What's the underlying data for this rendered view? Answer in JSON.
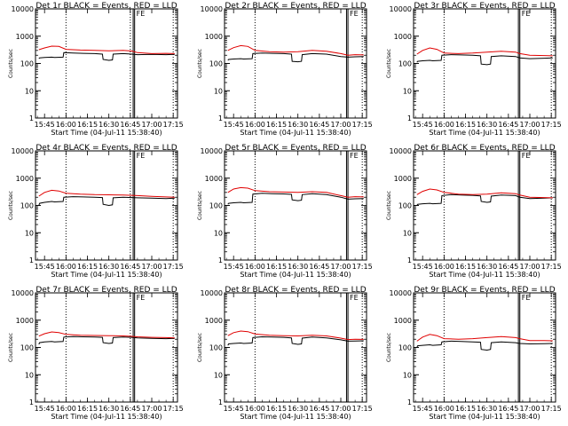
{
  "figure": {
    "time_ticks": [
      "15:45",
      "16:00",
      "16:15",
      "16:30",
      "16:45",
      "17:00",
      "17:15"
    ],
    "time_tick_minutes": [
      945,
      960,
      975,
      990,
      1005,
      1020,
      1035
    ],
    "y_tick_labels": [
      "1",
      "10",
      "100",
      "1000",
      "10000"
    ],
    "y_tick_values": [
      1,
      10,
      100,
      1000,
      10000
    ],
    "colors": {
      "events": "#000000",
      "lld": "#e00000",
      "axes": "#000000",
      "background": "#ffffff"
    }
  },
  "chart_data": [
    {
      "type": "line",
      "title": "Det 1r BLACK = Events, RED = LLD",
      "xlabel": "Start Time (04-Jul-11 15:38:40)",
      "ylabel": "Counts/sec",
      "yscale": "log",
      "ylim": [
        1,
        10000
      ],
      "xlim_minutes": [
        938.67,
        1038
      ],
      "x_tick_labels": [
        "15:45",
        "16:00",
        "16:15",
        "16:30",
        "16:45",
        "17:00",
        "17:15"
      ],
      "dotted_vlines": [
        "16:00",
        "16:45",
        "17:15"
      ],
      "solid_vlines": [
        1007.0,
        1008.0
      ],
      "flag_label": "FE",
      "series": [
        {
          "color": "#000000",
          "x": [
            941,
            941.5,
            945,
            950,
            952,
            958,
            958.5,
            965,
            972,
            980,
            985.5,
            986,
            990,
            992.5,
            993,
            1000,
            1006,
            1010,
            1020,
            1030,
            1036
          ],
          "y": [
            150,
            160,
            165,
            170,
            165,
            170,
            250,
            240,
            235,
            230,
            220,
            140,
            130,
            135,
            220,
            230,
            220,
            210,
            215,
            210,
            215
          ]
        },
        {
          "color": "#e00000",
          "x": [
            941,
            945,
            950,
            955,
            960,
            970,
            980,
            990,
            1000,
            1006,
            1010,
            1020,
            1030,
            1036
          ],
          "y": [
            320,
            370,
            430,
            420,
            330,
            310,
            300,
            290,
            300,
            285,
            250,
            230,
            235,
            230
          ]
        }
      ]
    },
    {
      "type": "line",
      "title": "Det 2r BLACK = Events, RED = LLD",
      "xlabel": "Start Time (04-Jul-11 15:38:40)",
      "ylabel": "Counts/sec",
      "yscale": "log",
      "ylim": [
        1,
        10000
      ],
      "xlim_minutes": [
        938.67,
        1038
      ],
      "x_tick_labels": [
        "15:45",
        "16:00",
        "16:15",
        "16:30",
        "16:45",
        "17:00",
        "17:15"
      ],
      "dotted_vlines": [
        "16:00",
        "17:15"
      ],
      "solid_vlines": [
        1024.0,
        1025.0
      ],
      "flag_label": "FE",
      "series": [
        {
          "color": "#000000",
          "x": [
            941,
            941.5,
            945,
            950,
            952,
            958,
            958.5,
            965,
            972,
            980,
            985.5,
            986,
            990,
            992.5,
            993,
            1000,
            1010,
            1020,
            1025,
            1030,
            1036
          ],
          "y": [
            130,
            140,
            145,
            150,
            145,
            150,
            230,
            240,
            235,
            230,
            220,
            120,
            115,
            120,
            210,
            230,
            220,
            180,
            170,
            175,
            180
          ]
        },
        {
          "color": "#e00000",
          "x": [
            941,
            945,
            950,
            955,
            960,
            970,
            980,
            990,
            1000,
            1010,
            1020,
            1025,
            1030,
            1036
          ],
          "y": [
            300,
            380,
            450,
            420,
            300,
            270,
            260,
            270,
            300,
            280,
            230,
            200,
            210,
            205
          ]
        }
      ]
    },
    {
      "type": "line",
      "title": "Det 3r BLACK = Events, RED = LLD",
      "xlabel": "Start Time (04-Jul-11 15:38:40)",
      "ylabel": "Counts/sec",
      "yscale": "log",
      "ylim": [
        1,
        10000
      ],
      "xlim_minutes": [
        938.67,
        1038
      ],
      "x_tick_labels": [
        "15:45",
        "16:00",
        "16:15",
        "16:30",
        "16:45",
        "17:00",
        "17:15"
      ],
      "dotted_vlines": [
        "16:00",
        "17:15"
      ],
      "solid_vlines": [
        1012.0,
        1013.0
      ],
      "flag_label": "FE",
      "series": [
        {
          "color": "#000000",
          "x": [
            941,
            941.5,
            945,
            950,
            952,
            958,
            958.5,
            965,
            972,
            980,
            985.5,
            986,
            990,
            992.5,
            993,
            1000,
            1010,
            1013,
            1020,
            1030,
            1036
          ],
          "y": [
            110,
            120,
            125,
            130,
            125,
            130,
            200,
            210,
            205,
            200,
            190,
            95,
            90,
            95,
            180,
            190,
            180,
            160,
            150,
            155,
            160
          ]
        },
        {
          "color": "#e00000",
          "x": [
            941,
            945,
            950,
            955,
            960,
            970,
            980,
            990,
            1000,
            1010,
            1013,
            1020,
            1030,
            1036
          ],
          "y": [
            220,
            300,
            370,
            330,
            240,
            230,
            240,
            260,
            280,
            260,
            230,
            200,
            195,
            190
          ]
        }
      ]
    },
    {
      "type": "line",
      "title": "Det 4r BLACK = Events, RED = LLD",
      "xlabel": "Start Time (04-Jul-11 15:38:40)",
      "ylabel": "Counts/sec",
      "yscale": "log",
      "ylim": [
        1,
        10000
      ],
      "xlim_minutes": [
        938.67,
        1038
      ],
      "x_tick_labels": [
        "15:45",
        "16:00",
        "16:15",
        "16:30",
        "16:45",
        "17:00",
        "17:15"
      ],
      "dotted_vlines": [
        "16:00",
        "16:45",
        "17:15"
      ],
      "solid_vlines": [
        1007.0,
        1008.0
      ],
      "flag_label": "FE",
      "series": [
        {
          "color": "#000000",
          "x": [
            941,
            941.5,
            945,
            950,
            952,
            958,
            958.5,
            965,
            972,
            980,
            985.5,
            986,
            990,
            992.5,
            993,
            1000,
            1006,
            1010,
            1020,
            1030,
            1036
          ],
          "y": [
            100,
            120,
            130,
            140,
            135,
            140,
            200,
            210,
            205,
            200,
            195,
            110,
            100,
            105,
            190,
            200,
            195,
            190,
            185,
            180,
            185
          ]
        },
        {
          "color": "#e00000",
          "x": [
            941,
            945,
            950,
            955,
            960,
            970,
            980,
            990,
            1000,
            1006,
            1010,
            1020,
            1030,
            1036
          ],
          "y": [
            220,
            300,
            360,
            340,
            280,
            260,
            250,
            245,
            240,
            235,
            230,
            215,
            205,
            200
          ]
        }
      ]
    },
    {
      "type": "line",
      "title": "Det 5r BLACK = Events, RED = LLD",
      "xlabel": "Start Time (04-Jul-11 15:38:40)",
      "ylabel": "Counts/sec",
      "yscale": "log",
      "ylim": [
        1,
        10000
      ],
      "xlim_minutes": [
        938.67,
        1038
      ],
      "x_tick_labels": [
        "15:45",
        "16:00",
        "16:15",
        "16:30",
        "16:45",
        "17:00",
        "17:15"
      ],
      "dotted_vlines": [
        "16:00",
        "17:15"
      ],
      "solid_vlines": [
        1024.0,
        1025.0
      ],
      "flag_label": "FE",
      "series": [
        {
          "color": "#000000",
          "x": [
            941,
            941.5,
            945,
            950,
            952,
            958,
            958.5,
            965,
            972,
            980,
            985.5,
            986,
            990,
            992.5,
            993,
            1000,
            1010,
            1020,
            1025,
            1030,
            1036
          ],
          "y": [
            110,
            120,
            125,
            130,
            125,
            130,
            260,
            280,
            270,
            265,
            255,
            160,
            150,
            155,
            250,
            270,
            250,
            200,
            170,
            175,
            180
          ]
        },
        {
          "color": "#e00000",
          "x": [
            941,
            945,
            950,
            955,
            960,
            970,
            980,
            990,
            1000,
            1010,
            1020,
            1025,
            1030,
            1036
          ],
          "y": [
            300,
            400,
            450,
            430,
            350,
            320,
            310,
            300,
            320,
            300,
            230,
            200,
            210,
            205
          ]
        }
      ]
    },
    {
      "type": "line",
      "title": "Det 6r BLACK = Events, RED = LLD",
      "xlabel": "Start Time (04-Jul-11 15:38:40)",
      "ylabel": "Counts/sec",
      "yscale": "log",
      "ylim": [
        1,
        10000
      ],
      "xlim_minutes": [
        938.67,
        1038
      ],
      "x_tick_labels": [
        "15:45",
        "16:00",
        "16:15",
        "16:30",
        "16:45",
        "17:00",
        "17:15"
      ],
      "dotted_vlines": [
        "16:00",
        "17:15"
      ],
      "solid_vlines": [
        1012.0,
        1013.0
      ],
      "flag_label": "FE",
      "series": [
        {
          "color": "#000000",
          "x": [
            941,
            941.5,
            945,
            950,
            952,
            958,
            958.5,
            965,
            972,
            980,
            985.5,
            986,
            990,
            992.5,
            993,
            1000,
            1010,
            1013,
            1020,
            1030,
            1036
          ],
          "y": [
            100,
            110,
            115,
            120,
            115,
            120,
            230,
            250,
            240,
            235,
            225,
            140,
            130,
            135,
            220,
            240,
            230,
            200,
            180,
            185,
            190
          ]
        },
        {
          "color": "#e00000",
          "x": [
            941,
            945,
            950,
            955,
            960,
            970,
            980,
            990,
            1000,
            1010,
            1013,
            1020,
            1030,
            1036
          ],
          "y": [
            250,
            330,
            400,
            370,
            300,
            260,
            250,
            260,
            290,
            270,
            240,
            200,
            195,
            190
          ]
        }
      ]
    },
    {
      "type": "line",
      "title": "Det 7r BLACK = Events, RED = LLD",
      "xlabel": "Start Time (04-Jul-11 15:38:40)",
      "ylabel": "Counts/sec",
      "yscale": "log",
      "ylim": [
        1,
        10000
      ],
      "xlim_minutes": [
        938.67,
        1038
      ],
      "x_tick_labels": [
        "15:45",
        "16:00",
        "16:15",
        "16:30",
        "16:45",
        "17:00",
        "17:15"
      ],
      "dotted_vlines": [
        "16:00",
        "16:45",
        "17:15"
      ],
      "solid_vlines": [
        1007.0,
        1008.0
      ],
      "flag_label": "FE",
      "series": [
        {
          "color": "#000000",
          "x": [
            941,
            941.5,
            945,
            950,
            952,
            958,
            958.5,
            965,
            972,
            980,
            985.5,
            986,
            990,
            992.5,
            993,
            1000,
            1006,
            1010,
            1020,
            1030,
            1036
          ],
          "y": [
            130,
            150,
            160,
            165,
            160,
            165,
            240,
            250,
            245,
            240,
            235,
            150,
            140,
            145,
            230,
            240,
            235,
            225,
            215,
            210,
            215
          ]
        },
        {
          "color": "#e00000",
          "x": [
            941,
            945,
            950,
            955,
            960,
            970,
            980,
            990,
            1000,
            1006,
            1010,
            1020,
            1030,
            1036
          ],
          "y": [
            260,
            320,
            370,
            350,
            300,
            280,
            275,
            270,
            265,
            255,
            245,
            235,
            230,
            225
          ]
        }
      ]
    },
    {
      "type": "line",
      "title": "Det 8r BLACK = Events, RED = LLD",
      "xlabel": "Start Time (04-Jul-11 15:38:40)",
      "ylabel": "Counts/sec",
      "yscale": "log",
      "ylim": [
        1,
        10000
      ],
      "xlim_minutes": [
        938.67,
        1038
      ],
      "x_tick_labels": [
        "15:45",
        "16:00",
        "16:15",
        "16:30",
        "16:45",
        "17:00",
        "17:15"
      ],
      "dotted_vlines": [
        "16:00",
        "17:15"
      ],
      "solid_vlines": [
        1024.0,
        1025.0
      ],
      "flag_label": "FE",
      "series": [
        {
          "color": "#000000",
          "x": [
            941,
            941.5,
            945,
            950,
            952,
            958,
            958.5,
            965,
            972,
            980,
            985.5,
            986,
            990,
            992.5,
            993,
            1000,
            1010,
            1020,
            1025,
            1030,
            1036
          ],
          "y": [
            120,
            135,
            140,
            145,
            140,
            145,
            230,
            245,
            240,
            235,
            225,
            140,
            130,
            135,
            220,
            240,
            225,
            190,
            170,
            172,
            175
          ]
        },
        {
          "color": "#e00000",
          "x": [
            941,
            945,
            950,
            955,
            960,
            970,
            980,
            990,
            1000,
            1010,
            1020,
            1025,
            1030,
            1036
          ],
          "y": [
            270,
            350,
            400,
            380,
            310,
            280,
            270,
            265,
            280,
            265,
            220,
            195,
            200,
            198
          ]
        }
      ]
    },
    {
      "type": "line",
      "title": "Det 9r BLACK = Events, RED = LLD",
      "xlabel": "Start Time (04-Jul-11 15:38:40)",
      "ylabel": "Counts/sec",
      "yscale": "log",
      "ylim": [
        1,
        10000
      ],
      "xlim_minutes": [
        938.67,
        1038
      ],
      "x_tick_labels": [
        "15:45",
        "16:00",
        "16:15",
        "16:30",
        "16:45",
        "17:00",
        "17:15"
      ],
      "dotted_vlines": [
        "16:00",
        "17:15"
      ],
      "solid_vlines": [
        1012.0,
        1013.0
      ],
      "flag_label": "FE",
      "series": [
        {
          "color": "#000000",
          "x": [
            941,
            941.5,
            945,
            950,
            952,
            958,
            958.5,
            965,
            972,
            980,
            985.5,
            986,
            990,
            992.5,
            993,
            1000,
            1010,
            1013,
            1020,
            1030,
            1036
          ],
          "y": [
            100,
            115,
            120,
            125,
            120,
            125,
            160,
            170,
            165,
            160,
            155,
            85,
            80,
            85,
            150,
            160,
            150,
            140,
            135,
            138,
            140
          ]
        },
        {
          "color": "#e00000",
          "x": [
            941,
            945,
            950,
            955,
            960,
            970,
            980,
            990,
            1000,
            1010,
            1013,
            1020,
            1030,
            1036
          ],
          "y": [
            170,
            240,
            300,
            270,
            210,
            200,
            210,
            230,
            250,
            230,
            210,
            180,
            178,
            176
          ]
        }
      ]
    }
  ]
}
